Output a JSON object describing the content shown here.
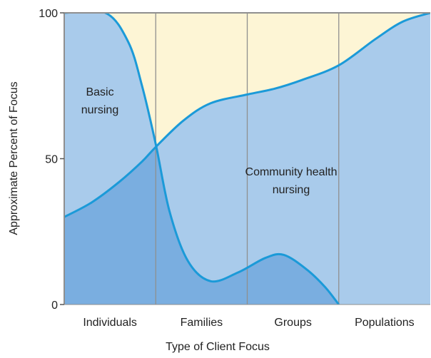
{
  "chart_data": {
    "type": "line",
    "x_label": "Type of Client Focus",
    "y_label": "Approximate Percent of Focus",
    "categories": [
      "Individuals",
      "Families",
      "Groups",
      "Populations"
    ],
    "xlim": [
      0,
      4
    ],
    "ylim": [
      0,
      100
    ],
    "yticks": [
      0,
      50,
      100
    ],
    "background_color": "#fdf5d5",
    "series": [
      {
        "name": "Basic nursing",
        "color": "#1b9ad8",
        "fill": "#a9cbeb",
        "x": [
          0,
          0.45,
          0.7,
          0.85,
          1.0,
          1.15,
          1.35,
          1.6,
          1.9,
          2.2,
          2.4,
          2.65,
          2.85,
          3.0
        ],
        "values": [
          100,
          100,
          90,
          75,
          55,
          32,
          15,
          8,
          11,
          16,
          17,
          12,
          6,
          0
        ]
      },
      {
        "name": "Community health nursing",
        "color": "#1b9ad8",
        "fill": "#a9cbeb",
        "x": [
          0,
          0.3,
          0.6,
          0.85,
          1.0,
          1.3,
          1.6,
          2.0,
          2.3,
          2.6,
          3.0,
          3.4,
          3.7,
          4.0
        ],
        "values": [
          30,
          35,
          42,
          49,
          54,
          63,
          69,
          72,
          74,
          77,
          82,
          91,
          97,
          100
        ]
      }
    ],
    "overlap_color": "#7aaee0"
  }
}
